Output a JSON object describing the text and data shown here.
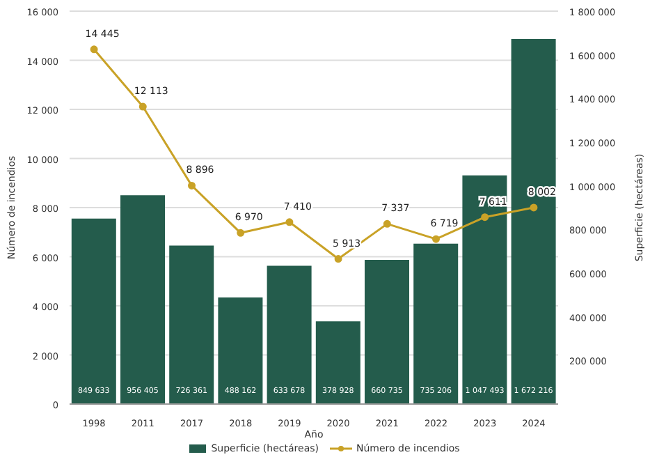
{
  "chart_data": {
    "type": "bar",
    "xlabel": "Año",
    "ylabel": "Número de incendios",
    "y2label": "Superficie (hectáreas)",
    "categories": [
      "1998",
      "2011",
      "2017",
      "2018",
      "2019",
      "2020",
      "2021",
      "2022",
      "2023",
      "2024"
    ],
    "series": [
      {
        "name": "Superficie (hectáreas)",
        "axis": "y2",
        "color": "#245c4c",
        "values": [
          849633,
          956405,
          726361,
          488162,
          633678,
          378928,
          660735,
          735206,
          1047493,
          1672216
        ],
        "value_labels": [
          "849 633",
          "956 405",
          "726 361",
          "488 162",
          "633 678",
          "378 928",
          "660 735",
          "735 206",
          "1 047 493",
          "1 672 216"
        ]
      },
      {
        "name": "Número de incendios",
        "type": "line",
        "color": "#c9a227",
        "values": [
          14445,
          12113,
          8896,
          6970,
          7410,
          5913,
          7337,
          6719,
          7611,
          8002
        ],
        "value_labels": [
          "14 445",
          "12 113",
          "8 896",
          "6 970",
          "7 410",
          "5 913",
          "7 337",
          "6 719",
          "7 611",
          "8 002"
        ]
      }
    ],
    "ylim": [
      0,
      16000
    ],
    "yticks": [
      0,
      {
        "value": 2000,
        "label": "2 000"
      },
      {
        "value": 4000,
        "label": "4 000"
      },
      {
        "value": 6000,
        "label": "6 000"
      },
      {
        "value": 8000,
        "label": "8 000"
      },
      {
        "value": 10000,
        "label": "10 000"
      },
      {
        "value": 12000,
        "label": "12 000"
      },
      {
        "value": 14000,
        "label": "14 000"
      },
      {
        "value": 16000,
        "label": "16 000"
      }
    ],
    "y2lim": [
      0,
      1800000
    ],
    "y2ticks": [
      {
        "value": 0,
        "label": null
      },
      {
        "value": 200000,
        "label": "200 000"
      },
      {
        "value": 400000,
        "label": "400 000"
      },
      {
        "value": 600000,
        "label": "600 000"
      },
      {
        "value": 800000,
        "label": "800 000"
      },
      {
        "value": 1000000,
        "label": "1 000 000"
      },
      {
        "value": 1200000,
        "label": "1 200 000"
      },
      {
        "value": 1400000,
        "label": "1 400 000"
      },
      {
        "value": 1600000,
        "label": "1 600 000"
      },
      {
        "value": 1800000,
        "label": "1 800 000"
      }
    ],
    "grid": "y",
    "legend": "bottom",
    "marker": "circle"
  }
}
